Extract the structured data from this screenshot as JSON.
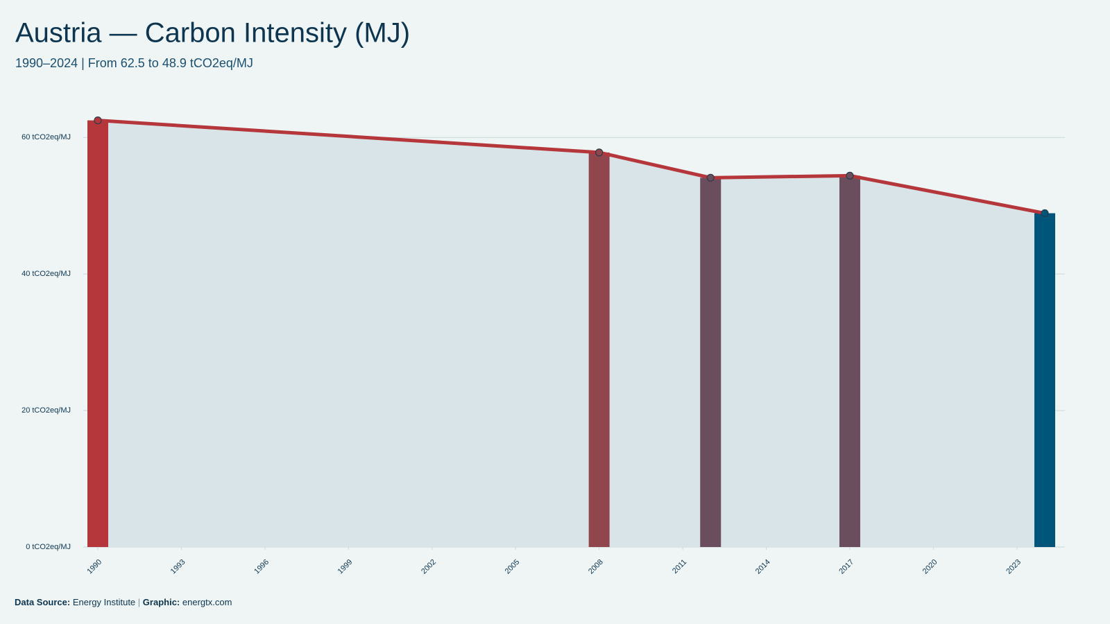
{
  "chart_data": {
    "type": "area",
    "title": "Austria — Carbon Intensity (MJ)",
    "subtitle": "1990–2024 | From 62.5 to 48.9 tCO2eq/MJ",
    "x": [
      1990,
      2008,
      2012,
      2017,
      2024
    ],
    "values": [
      62.5,
      57.8,
      54.1,
      54.4,
      48.9
    ],
    "bar_colors": [
      "#b5373b",
      "#91464e",
      "#6b4e5e",
      "#6b4e5e",
      "#00567a"
    ],
    "line_color": "#b5373b",
    "area_color": "#d8e4e8",
    "xlim": [
      1990,
      2024
    ],
    "xticks": [
      1990,
      1993,
      1996,
      1999,
      2002,
      2005,
      2008,
      2011,
      2014,
      2017,
      2020,
      2023
    ],
    "ylim": [
      0,
      65
    ],
    "yticks": [
      {
        "value": 0,
        "label": "0 tCO2eq/MJ"
      },
      {
        "value": 20,
        "label": "20 tCO2eq/MJ"
      },
      {
        "value": 40,
        "label": "40 tCO2eq/MJ"
      },
      {
        "value": 60,
        "label": "60 tCO2eq/MJ"
      }
    ],
    "grid": true,
    "footer": {
      "source_label": "Data Source:",
      "source": "Energy Institute",
      "separator": "|",
      "graphic_label": "Graphic:",
      "graphic": "energtx.com"
    }
  }
}
